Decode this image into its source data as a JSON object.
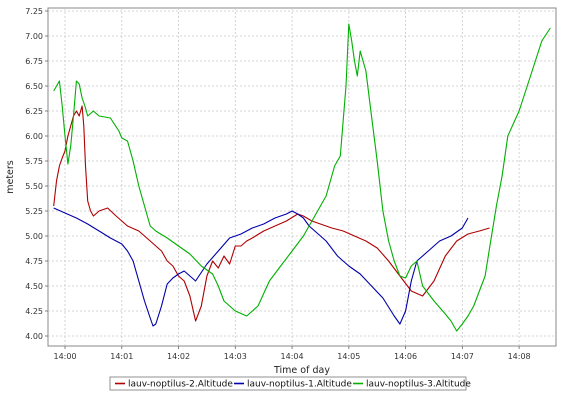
{
  "chart_data": {
    "type": "line",
    "title": "",
    "xlabel": "Time of day",
    "ylabel": "meters",
    "ylim": [
      3.9,
      7.28
    ],
    "yticks": [
      "4.00",
      "4.25",
      "4.50",
      "4.75",
      "5.00",
      "5.25",
      "5.50",
      "5.75",
      "6.00",
      "6.25",
      "6.50",
      "6.75",
      "7.00",
      "7.25"
    ],
    "xticks": [
      "14:00",
      "14:01",
      "14:02",
      "14:03",
      "14:04",
      "14:05",
      "14:06",
      "14:07",
      "14:08"
    ],
    "xlim_minutes": [
      -0.3,
      8.65
    ],
    "grid": true,
    "legend_position": "bottom",
    "series": [
      {
        "name": "lauv-noptilus-2.Altitude",
        "color": "#b00000",
        "x": [
          -0.2,
          -0.15,
          -0.1,
          -0.05,
          0.0,
          0.05,
          0.1,
          0.15,
          0.2,
          0.25,
          0.3,
          0.33,
          0.36,
          0.4,
          0.45,
          0.5,
          0.6,
          0.75,
          0.9,
          1.0,
          1.1,
          1.3,
          1.5,
          1.7,
          1.8,
          1.9,
          2.0,
          2.1,
          2.2,
          2.3,
          2.4,
          2.5,
          2.6,
          2.7,
          2.8,
          2.9,
          3.0,
          3.1,
          3.2,
          3.3,
          3.5,
          3.7,
          3.9,
          4.1,
          4.2,
          4.35,
          4.5,
          4.7,
          4.9,
          5.1,
          5.3,
          5.5,
          5.7,
          5.9,
          6.1,
          6.3,
          6.5,
          6.7,
          6.9,
          7.1,
          7.3,
          7.48
        ],
        "y": [
          5.3,
          5.55,
          5.7,
          5.78,
          5.85,
          6.0,
          6.1,
          6.2,
          6.25,
          6.2,
          6.3,
          6.1,
          5.7,
          5.35,
          5.25,
          5.2,
          5.25,
          5.28,
          5.2,
          5.15,
          5.1,
          5.05,
          4.95,
          4.85,
          4.75,
          4.7,
          4.6,
          4.55,
          4.4,
          4.15,
          4.3,
          4.6,
          4.75,
          4.68,
          4.8,
          4.72,
          4.9,
          4.9,
          4.95,
          4.98,
          5.05,
          5.1,
          5.15,
          5.22,
          5.2,
          5.15,
          5.12,
          5.08,
          5.05,
          5.0,
          4.95,
          4.88,
          4.75,
          4.6,
          4.45,
          4.4,
          4.55,
          4.8,
          4.95,
          5.02,
          5.05,
          5.08
        ]
      },
      {
        "name": "lauv-noptilus-1.Altitude",
        "color": "#0000aa",
        "x": [
          -0.2,
          0.0,
          0.2,
          0.4,
          0.6,
          0.8,
          1.0,
          1.1,
          1.2,
          1.3,
          1.4,
          1.5,
          1.55,
          1.6,
          1.7,
          1.8,
          1.9,
          2.0,
          2.1,
          2.2,
          2.3,
          2.5,
          2.7,
          2.9,
          3.1,
          3.3,
          3.5,
          3.7,
          3.9,
          4.0,
          4.1,
          4.2,
          4.3,
          4.4,
          4.6,
          4.8,
          5.0,
          5.2,
          5.4,
          5.6,
          5.8,
          5.9,
          6.0,
          6.1,
          6.2,
          6.4,
          6.6,
          6.8,
          7.0,
          7.1
        ],
        "y": [
          5.28,
          5.23,
          5.18,
          5.12,
          5.05,
          4.98,
          4.92,
          4.85,
          4.75,
          4.55,
          4.35,
          4.18,
          4.1,
          4.12,
          4.3,
          4.52,
          4.58,
          4.62,
          4.65,
          4.6,
          4.55,
          4.72,
          4.85,
          4.98,
          5.02,
          5.08,
          5.12,
          5.18,
          5.22,
          5.25,
          5.22,
          5.18,
          5.1,
          5.05,
          4.95,
          4.8,
          4.7,
          4.62,
          4.5,
          4.38,
          4.2,
          4.12,
          4.25,
          4.55,
          4.75,
          4.85,
          4.95,
          5.0,
          5.08,
          5.18
        ]
      },
      {
        "name": "lauv-noptilus-3.Altitude",
        "color": "#00b000",
        "x": [
          -0.2,
          -0.1,
          -0.05,
          0.0,
          0.05,
          0.1,
          0.15,
          0.2,
          0.25,
          0.3,
          0.35,
          0.4,
          0.5,
          0.6,
          0.8,
          0.95,
          1.0,
          1.1,
          1.2,
          1.3,
          1.4,
          1.5,
          1.6,
          1.8,
          2.0,
          2.2,
          2.4,
          2.6,
          2.7,
          2.8,
          3.0,
          3.2,
          3.4,
          3.6,
          3.8,
          4.0,
          4.2,
          4.4,
          4.6,
          4.75,
          4.85,
          4.95,
          5.0,
          5.05,
          5.1,
          5.15,
          5.2,
          5.3,
          5.4,
          5.5,
          5.6,
          5.7,
          5.8,
          5.9,
          6.0,
          6.1,
          6.2,
          6.3,
          6.5,
          6.7,
          6.8,
          6.9,
          7.0,
          7.1,
          7.2,
          7.4,
          7.5,
          7.6,
          7.7,
          7.8,
          8.0,
          8.2,
          8.4,
          8.55
        ],
        "y": [
          6.45,
          6.55,
          6.3,
          6.0,
          5.72,
          5.9,
          6.2,
          6.55,
          6.52,
          6.38,
          6.3,
          6.2,
          6.25,
          6.2,
          6.18,
          6.05,
          5.98,
          5.95,
          5.75,
          5.5,
          5.3,
          5.1,
          5.05,
          4.98,
          4.9,
          4.82,
          4.7,
          4.62,
          4.5,
          4.35,
          4.25,
          4.2,
          4.3,
          4.55,
          4.7,
          4.85,
          5.0,
          5.2,
          5.4,
          5.7,
          5.8,
          6.5,
          7.12,
          6.95,
          6.75,
          6.6,
          6.85,
          6.65,
          6.2,
          5.75,
          5.25,
          4.95,
          4.75,
          4.6,
          4.58,
          4.7,
          4.75,
          4.5,
          4.35,
          4.22,
          4.15,
          4.05,
          4.12,
          4.2,
          4.3,
          4.6,
          4.95,
          5.3,
          5.6,
          6.0,
          6.25,
          6.6,
          6.95,
          7.08
        ]
      }
    ]
  }
}
